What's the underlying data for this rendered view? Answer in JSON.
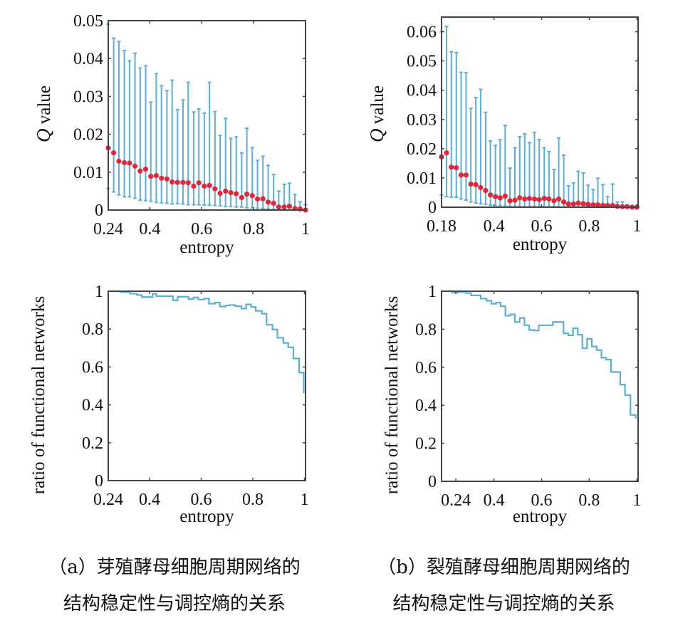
{
  "colors": {
    "errorbar": "#5aaed8",
    "mean": "#e0283c",
    "step": "#5aaed8",
    "axes": "#444444"
  },
  "chart_data": [
    {
      "type": "errorbar-scatter",
      "panel": "a",
      "ylabel_italic": "Q",
      "ylabel": " value",
      "xlabel": "entropy",
      "xlim": [
        0.24,
        1
      ],
      "ylim": [
        0,
        0.05
      ],
      "xticks": [
        "0.24",
        "0.4",
        "0.6",
        "0.8",
        "1"
      ],
      "yticks": [
        "0",
        "0.01",
        "0.02",
        "0.03",
        "0.04",
        "0.05"
      ],
      "x": [
        0.24,
        0.261,
        0.281,
        0.302,
        0.322,
        0.343,
        0.363,
        0.384,
        0.404,
        0.425,
        0.445,
        0.466,
        0.486,
        0.507,
        0.528,
        0.548,
        0.569,
        0.589,
        0.61,
        0.63,
        0.651,
        0.671,
        0.692,
        0.712,
        0.733,
        0.754,
        0.774,
        0.795,
        0.815,
        0.836,
        0.856,
        0.877,
        0.897,
        0.918,
        0.938,
        0.959,
        0.979,
        1.0
      ],
      "mean": [
        0.0164,
        0.0151,
        0.0129,
        0.0125,
        0.0124,
        0.0116,
        0.0103,
        0.0108,
        0.0089,
        0.0091,
        0.0084,
        0.0082,
        0.0074,
        0.0073,
        0.0073,
        0.0072,
        0.0063,
        0.0072,
        0.0063,
        0.0065,
        0.0056,
        0.0044,
        0.005,
        0.0046,
        0.0043,
        0.0033,
        0.0042,
        0.0038,
        0.0029,
        0.003,
        0.0021,
        0.0018,
        0.0008,
        0.0008,
        0.001,
        0.0004,
        0.0003,
        0.0
      ],
      "upper": [
        0.049,
        0.0454,
        0.0445,
        0.0421,
        0.0394,
        0.0414,
        0.0375,
        0.0381,
        0.0285,
        0.036,
        0.0328,
        0.0315,
        0.0343,
        0.0265,
        0.0291,
        0.0337,
        0.0259,
        0.0267,
        0.0256,
        0.0337,
        0.026,
        0.0197,
        0.0242,
        0.0189,
        0.0193,
        0.0151,
        0.0216,
        0.0165,
        0.0131,
        0.0142,
        0.0118,
        0.0094,
        0.005,
        0.0068,
        0.0071,
        0.0041,
        0.0022,
        0.0014
      ],
      "lower": [
        0.0057,
        0.0048,
        0.004,
        0.0035,
        0.0035,
        0.0031,
        0.0026,
        0.0025,
        0.0023,
        0.002,
        0.0019,
        0.0018,
        0.0016,
        0.0017,
        0.0016,
        0.0014,
        0.0014,
        0.0014,
        0.0013,
        0.0013,
        0.0012,
        0.0011,
        0.0009,
        0.0009,
        0.0008,
        0.0008,
        0.0006,
        0.0006,
        0.0005,
        0.0004,
        0.0003,
        0.0002,
        0,
        0,
        0,
        0,
        0,
        0
      ]
    },
    {
      "type": "errorbar-scatter",
      "panel": "b",
      "ylabel_italic": "Q",
      "ylabel": " value",
      "xlabel": "entropy",
      "xlim": [
        0.18,
        1.005
      ],
      "ylim": [
        0,
        0.065
      ],
      "xticks": [
        "0.18",
        "0.4",
        "0.6",
        "0.8",
        "1"
      ],
      "yticks": [
        "0",
        "0.01",
        "0.02",
        "0.03",
        "0.04",
        "0.05",
        "0.06"
      ],
      "x": [
        0.18,
        0.201,
        0.221,
        0.242,
        0.262,
        0.283,
        0.303,
        0.324,
        0.344,
        0.365,
        0.385,
        0.406,
        0.426,
        0.447,
        0.467,
        0.488,
        0.508,
        0.529,
        0.549,
        0.57,
        0.59,
        0.611,
        0.631,
        0.652,
        0.672,
        0.693,
        0.713,
        0.734,
        0.754,
        0.775,
        0.795,
        0.816,
        0.836,
        0.857,
        0.877,
        0.898,
        0.918,
        0.939,
        0.959,
        0.98,
        1.0
      ],
      "mean": [
        0.0172,
        0.0186,
        0.0137,
        0.0135,
        0.011,
        0.011,
        0.0079,
        0.0077,
        0.0067,
        0.0057,
        0.0042,
        0.0036,
        0.0032,
        0.0038,
        0.0022,
        0.0024,
        0.0032,
        0.0028,
        0.003,
        0.0028,
        0.0026,
        0.003,
        0.0028,
        0.0022,
        0.0028,
        0.0018,
        0.0011,
        0.0011,
        0.0014,
        0.0012,
        0.001,
        0.0008,
        0.0008,
        0.0006,
        0.0006,
        0.0006,
        0.0003,
        0.0002,
        0.0002,
        0.0,
        0.0
      ],
      "upper": [
        0.06,
        0.0618,
        0.0531,
        0.0529,
        0.0461,
        0.046,
        0.0338,
        0.0375,
        0.0403,
        0.0324,
        0.0227,
        0.0211,
        0.0231,
        0.028,
        0.0134,
        0.0203,
        0.0241,
        0.0251,
        0.0221,
        0.0256,
        0.0231,
        0.0203,
        0.019,
        0.0129,
        0.0237,
        0.0178,
        0.0073,
        0.0083,
        0.0123,
        0.0117,
        0.0075,
        0.006,
        0.0099,
        0.0077,
        0.0036,
        0.0079,
        0.0018,
        0.0018,
        0.0008,
        0.0003,
        0.0
      ],
      "lower": [
        0.0042,
        0.0036,
        0.0034,
        0.0034,
        0.0028,
        0.0024,
        0.0018,
        0.0014,
        0.0012,
        0.001,
        0.0007,
        0.0006,
        0.0004,
        0.0003,
        0.0003,
        0.0003,
        0.0003,
        0.0002,
        0.0002,
        0.0002,
        0.0002,
        0.0002,
        0.0002,
        0.0002,
        0.0002,
        0.0001,
        0.0001,
        0.0001,
        0.0001,
        0.0001,
        0.0001,
        0.0001,
        0.0001,
        0,
        0,
        0,
        0,
        0,
        0,
        0,
        0
      ]
    },
    {
      "type": "step",
      "panel": "a",
      "ylabel": "ratio of functional networks",
      "xlabel": "entropy",
      "xlim": [
        0.24,
        1.004
      ],
      "ylim": [
        0,
        1
      ],
      "xticks": [
        "0.24",
        "0.4",
        "0.6",
        "0.8",
        "1"
      ],
      "yticks": [
        "0",
        "0.2",
        "0.4",
        "0.6",
        "0.8",
        "1"
      ],
      "x": [
        0.24,
        0.286,
        0.324,
        0.351,
        0.37,
        0.412,
        0.426,
        0.491,
        0.509,
        0.551,
        0.57,
        0.588,
        0.612,
        0.63,
        0.653,
        0.672,
        0.695,
        0.709,
        0.732,
        0.756,
        0.774,
        0.793,
        0.811,
        0.835,
        0.853,
        0.876,
        0.895,
        0.918,
        0.937,
        0.957,
        0.979,
        0.997
      ],
      "y": [
        1.0,
        0.996,
        0.987,
        0.98,
        0.969,
        0.987,
        0.974,
        0.952,
        0.971,
        0.959,
        0.967,
        0.956,
        0.961,
        0.934,
        0.94,
        0.919,
        0.925,
        0.927,
        0.921,
        0.908,
        0.93,
        0.917,
        0.896,
        0.881,
        0.823,
        0.798,
        0.754,
        0.727,
        0.704,
        0.645,
        0.57,
        0.461
      ]
    },
    {
      "type": "step",
      "panel": "b",
      "ylabel": "ratio of functional networks",
      "xlabel": "entropy",
      "xlim": [
        0.18,
        1.005
      ],
      "ylim": [
        0,
        1
      ],
      "xticks": [
        "0.24",
        "0.4",
        "0.6",
        "0.8",
        "1"
      ],
      "yticks": [
        "0",
        "0.2",
        "0.4",
        "0.6",
        "0.8",
        "1"
      ],
      "x": [
        0.18,
        0.225,
        0.25,
        0.284,
        0.304,
        0.344,
        0.369,
        0.389,
        0.409,
        0.428,
        0.448,
        0.468,
        0.488,
        0.508,
        0.528,
        0.548,
        0.568,
        0.588,
        0.612,
        0.647,
        0.692,
        0.712,
        0.732,
        0.752,
        0.771,
        0.791,
        0.811,
        0.831,
        0.851,
        0.871,
        0.891,
        0.93,
        0.95,
        0.973,
        0.995
      ],
      "y": [
        1.0,
        0.993,
        0.996,
        0.99,
        0.978,
        0.961,
        0.95,
        0.934,
        0.94,
        0.921,
        0.871,
        0.878,
        0.838,
        0.859,
        0.821,
        0.796,
        0.793,
        0.821,
        0.821,
        0.838,
        0.778,
        0.768,
        0.805,
        0.771,
        0.7,
        0.75,
        0.709,
        0.69,
        0.65,
        0.64,
        0.575,
        0.509,
        0.453,
        0.349,
        0.33
      ]
    }
  ],
  "captions": {
    "a": [
      "（a）芽殖酵母细胞周期网络的",
      "结构稳定性与调控熵的关系"
    ],
    "b": [
      "（b）裂殖酵母细胞周期网络的",
      "结构稳定性与调控熵的关系"
    ]
  }
}
